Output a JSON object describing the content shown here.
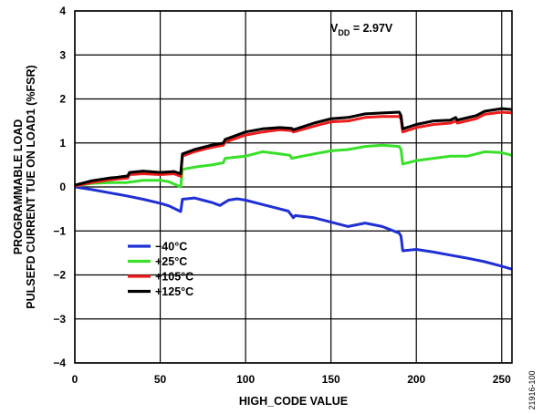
{
  "chart_data": {
    "type": "line",
    "xlabel": "HIGH_CODE VALUE",
    "ylabel": [
      "PROGRAMMABLE LOAD",
      "PULSEFD CURRENT TUE ON LOAD1 (%FSR)"
    ],
    "xlim": [
      0,
      256
    ],
    "ylim": [
      -4,
      4
    ],
    "xticks": [
      0,
      50,
      100,
      150,
      200,
      250
    ],
    "yticks": [
      -4,
      -3,
      -2,
      -1,
      0,
      1,
      2,
      3,
      4
    ],
    "grid": true,
    "legend_position": "lower-left",
    "annotation": {
      "main": "V",
      "sub": "DD",
      "rest": " = 2.97V"
    },
    "figure_id": "21916-100",
    "series": [
      {
        "name": "−40°C",
        "color": "#1f2fd6",
        "x": [
          0,
          10,
          20,
          30,
          40,
          50,
          55,
          62,
          63,
          70,
          75,
          80,
          85,
          90,
          95,
          100,
          110,
          120,
          125,
          128,
          129,
          140,
          150,
          160,
          170,
          180,
          190,
          191,
          192,
          200,
          210,
          220,
          230,
          240,
          250,
          256
        ],
        "y": [
          0.0,
          -0.06,
          -0.13,
          -0.2,
          -0.28,
          -0.37,
          -0.43,
          -0.56,
          -0.28,
          -0.25,
          -0.3,
          -0.35,
          -0.42,
          -0.3,
          -0.27,
          -0.3,
          -0.4,
          -0.5,
          -0.55,
          -0.7,
          -0.65,
          -0.7,
          -0.8,
          -0.9,
          -0.82,
          -0.9,
          -1.05,
          -1.12,
          -1.45,
          -1.42,
          -1.48,
          -1.55,
          -1.62,
          -1.7,
          -1.8,
          -1.87
        ]
      },
      {
        "name": "+25°C",
        "color": "#38e02a",
        "x": [
          0,
          10,
          20,
          30,
          40,
          50,
          55,
          62,
          63,
          70,
          80,
          87,
          88,
          100,
          110,
          120,
          126,
          127,
          140,
          150,
          160,
          170,
          180,
          190,
          191,
          192,
          200,
          210,
          220,
          230,
          240,
          250,
          256
        ],
        "y": [
          0.02,
          0.08,
          0.1,
          0.1,
          0.15,
          0.15,
          0.12,
          0.0,
          0.4,
          0.45,
          0.5,
          0.55,
          0.65,
          0.7,
          0.8,
          0.75,
          0.72,
          0.65,
          0.75,
          0.82,
          0.85,
          0.92,
          0.95,
          0.92,
          0.85,
          0.52,
          0.6,
          0.65,
          0.7,
          0.7,
          0.8,
          0.78,
          0.72
        ]
      },
      {
        "name": "+105°C",
        "color": "#ee1c1c",
        "x": [
          0,
          10,
          20,
          25,
          31,
          32,
          40,
          50,
          58,
          62,
          63,
          70,
          80,
          87,
          88,
          100,
          110,
          120,
          127,
          128,
          140,
          150,
          160,
          170,
          180,
          190,
          191,
          192,
          200,
          210,
          220,
          223,
          224,
          235,
          240,
          250,
          256
        ],
        "y": [
          0.02,
          0.1,
          0.16,
          0.18,
          0.2,
          0.28,
          0.3,
          0.28,
          0.3,
          0.24,
          0.7,
          0.8,
          0.9,
          0.95,
          1.02,
          1.18,
          1.25,
          1.3,
          1.28,
          1.25,
          1.38,
          1.48,
          1.5,
          1.58,
          1.6,
          1.6,
          1.55,
          1.25,
          1.35,
          1.42,
          1.45,
          1.5,
          1.45,
          1.55,
          1.65,
          1.7,
          1.68
        ]
      },
      {
        "name": "+125°C",
        "color": "#000000",
        "x": [
          0,
          10,
          20,
          25,
          31,
          32,
          40,
          50,
          58,
          62,
          63,
          70,
          80,
          87,
          88,
          100,
          110,
          120,
          127,
          128,
          140,
          150,
          160,
          170,
          180,
          190,
          191,
          192,
          200,
          210,
          220,
          223,
          224,
          235,
          240,
          250,
          256
        ],
        "y": [
          0.04,
          0.14,
          0.2,
          0.22,
          0.25,
          0.33,
          0.36,
          0.33,
          0.35,
          0.3,
          0.75,
          0.85,
          0.95,
          1.0,
          1.08,
          1.25,
          1.32,
          1.35,
          1.33,
          1.3,
          1.45,
          1.55,
          1.58,
          1.66,
          1.68,
          1.7,
          1.62,
          1.32,
          1.42,
          1.5,
          1.52,
          1.58,
          1.52,
          1.62,
          1.72,
          1.78,
          1.76
        ]
      }
    ]
  }
}
